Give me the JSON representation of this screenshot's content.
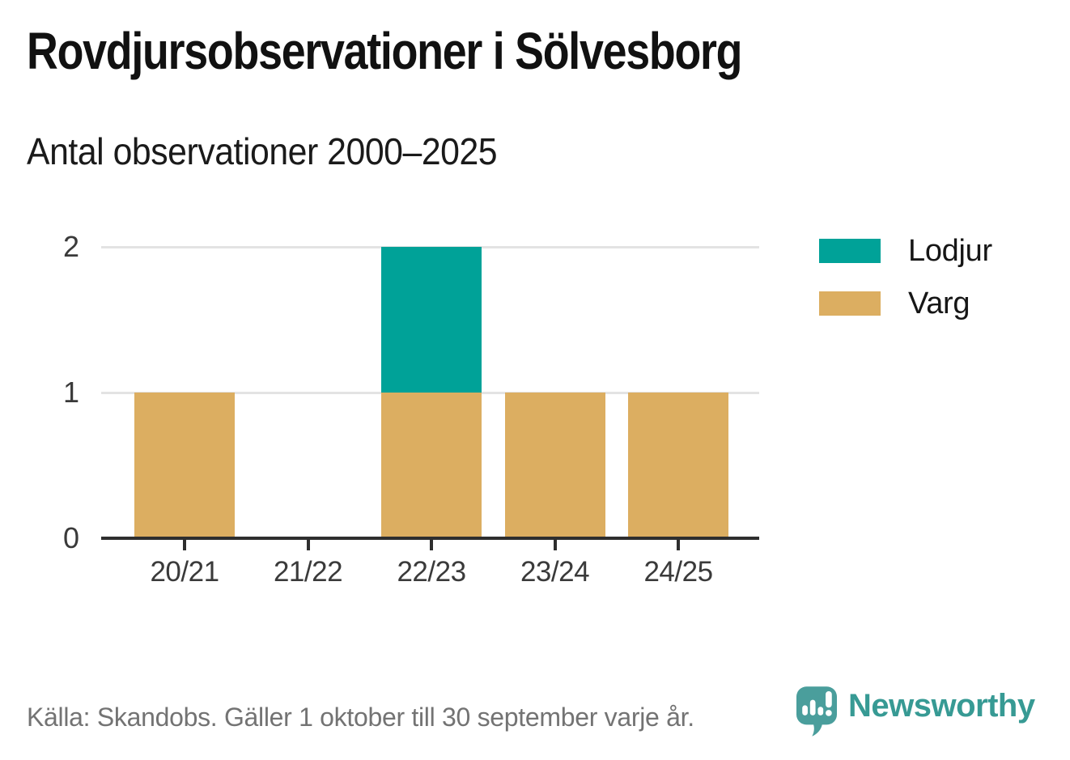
{
  "title": "Rovdjursobservationer i Sölvesborg",
  "subtitle": "Antal observationer 2000–2025",
  "legend": {
    "items": [
      {
        "label": "Lodjur",
        "color": "#00a298"
      },
      {
        "label": "Varg",
        "color": "#dcae61"
      }
    ]
  },
  "footer": {
    "source_text": "Källa: Skandobs. Gäller 1 oktober till 30 september varje år."
  },
  "branding": {
    "wordmark": "Newsworthy",
    "icon": "newsworthy-pin-barchart-icon",
    "icon_color": "#4a9e9c",
    "wordmark_color": "#379a94"
  },
  "colors": {
    "lodjur": "#00a298",
    "varg": "#dcae61",
    "axis": "#2e2e2e",
    "grid": "#e3e3e3",
    "tick_label": "#3a3a3a",
    "footer_text": "#737373",
    "title_text": "#111111"
  },
  "chart_data": {
    "type": "bar",
    "stacked": true,
    "title": "Rovdjursobservationer i Sölvesborg",
    "subtitle": "Antal observationer 2000–2025",
    "categories": [
      "20/21",
      "21/22",
      "22/23",
      "23/24",
      "24/25"
    ],
    "series": [
      {
        "name": "Lodjur",
        "color": "#00a298",
        "values": [
          0,
          0,
          1,
          0,
          0
        ]
      },
      {
        "name": "Varg",
        "color": "#dcae61",
        "values": [
          1,
          0,
          1,
          1,
          1
        ]
      }
    ],
    "stack_order_bottom_to_top": [
      "Varg",
      "Lodjur"
    ],
    "totals": [
      1,
      0,
      2,
      1,
      1
    ],
    "xlabel": "",
    "ylabel": "",
    "ylim": [
      0,
      2
    ],
    "yticks": [
      0,
      1,
      2
    ],
    "grid": true,
    "legend_position": "top-right"
  }
}
